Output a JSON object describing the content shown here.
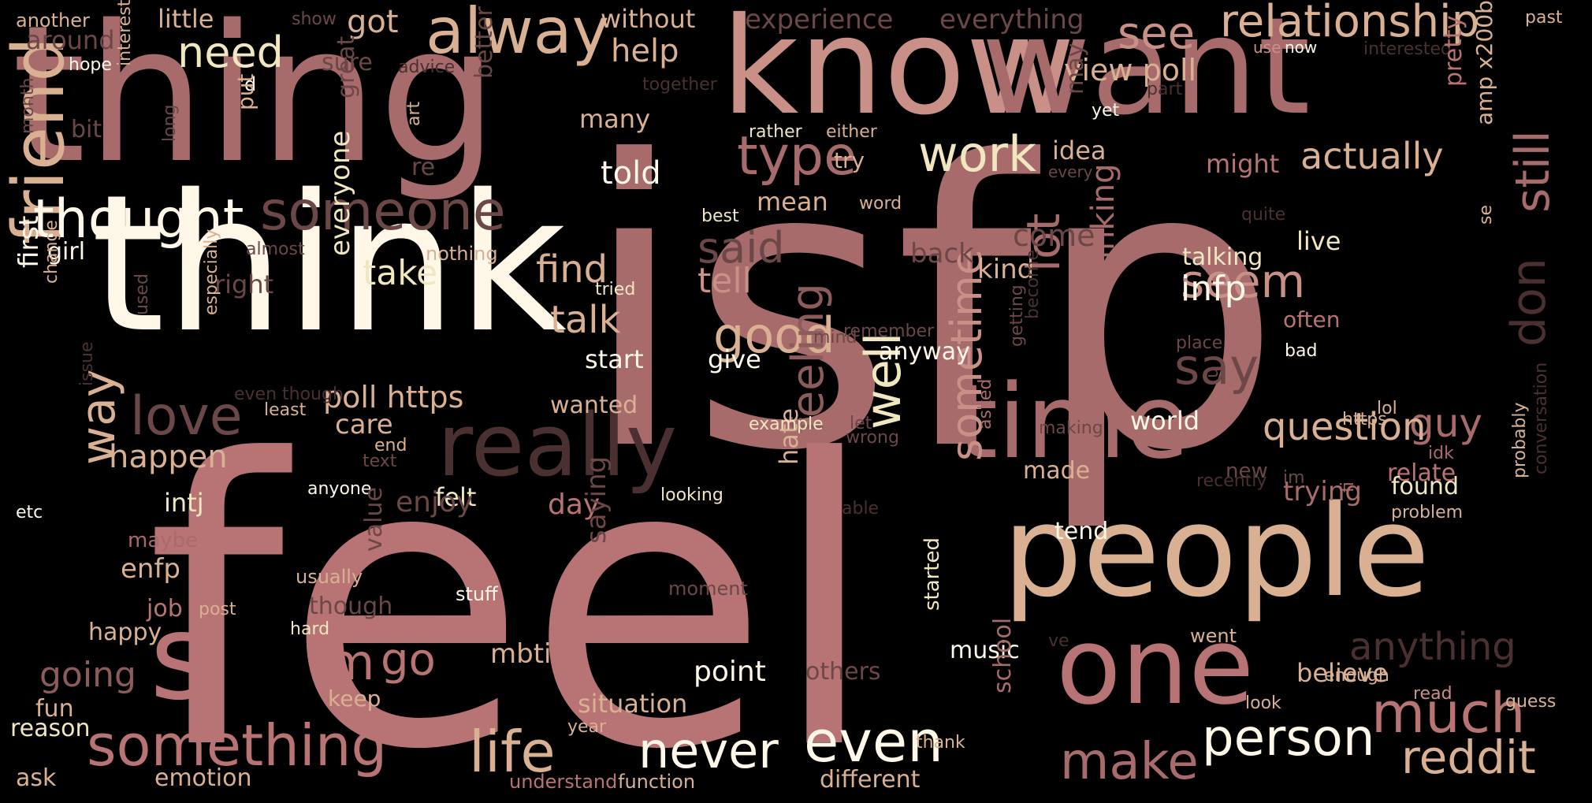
{
  "palette": {
    "background": "#000000",
    "rose": "#A86B6B",
    "rose2": "#B87474",
    "tan": "#D9B192",
    "cream": "#FFF8E8",
    "paleYellow": "#F0E6C0",
    "brown": "#6B4747",
    "darkBrown": "#4A3030",
    "mauve": "#C99088",
    "dust": "#8C5C5C"
  },
  "words": [
    {
      "t": "isfp"
    },
    {
      "t": "feel"
    },
    {
      "t": "think"
    },
    {
      "t": "thing"
    },
    {
      "t": "know"
    },
    {
      "t": "want"
    },
    {
      "t": "people"
    },
    {
      "t": "time"
    },
    {
      "t": "really"
    },
    {
      "t": "one"
    },
    {
      "t": "friend"
    },
    {
      "t": "s"
    },
    {
      "t": "something"
    },
    {
      "t": "life"
    },
    {
      "t": "even"
    },
    {
      "t": "never"
    },
    {
      "t": "make"
    },
    {
      "t": "person"
    },
    {
      "t": "much"
    },
    {
      "t": "reddit"
    },
    {
      "t": "alway"
    },
    {
      "t": "someone"
    },
    {
      "t": "thought"
    },
    {
      "t": "love"
    },
    {
      "t": "relationship"
    },
    {
      "t": "see"
    },
    {
      "t": "type"
    },
    {
      "t": "work"
    },
    {
      "t": "need"
    },
    {
      "t": "good"
    },
    {
      "t": "say"
    },
    {
      "t": "seem"
    },
    {
      "t": "lot"
    },
    {
      "t": "still"
    },
    {
      "t": "don"
    },
    {
      "t": "feeling"
    },
    {
      "t": "well"
    },
    {
      "t": "sometime"
    },
    {
      "t": "anything"
    },
    {
      "t": "go"
    },
    {
      "t": "m"
    },
    {
      "t": "way"
    },
    {
      "t": "going"
    },
    {
      "t": "said"
    },
    {
      "t": "tell"
    },
    {
      "t": "find"
    },
    {
      "t": "talk"
    },
    {
      "t": "take"
    },
    {
      "t": "actually"
    },
    {
      "t": "infp"
    },
    {
      "t": "guy"
    },
    {
      "t": "view poll"
    },
    {
      "t": "poll https"
    },
    {
      "t": "help"
    },
    {
      "t": "got"
    },
    {
      "t": "experience"
    },
    {
      "t": "everything"
    },
    {
      "t": "without"
    },
    {
      "t": "little"
    },
    {
      "t": "another"
    },
    {
      "t": "around"
    },
    {
      "t": "show"
    },
    {
      "t": "sure"
    },
    {
      "t": "advice"
    },
    {
      "t": "hope"
    },
    {
      "t": "d"
    },
    {
      "t": "together"
    },
    {
      "t": "past"
    },
    {
      "t": "use"
    },
    {
      "t": "now"
    },
    {
      "t": "interested"
    },
    {
      "t": "part"
    },
    {
      "t": "yet"
    },
    {
      "t": "may"
    },
    {
      "t": "idea"
    },
    {
      "t": "every"
    },
    {
      "t": "try"
    },
    {
      "t": "rather"
    },
    {
      "t": "either"
    },
    {
      "t": "many"
    },
    {
      "t": "better"
    },
    {
      "t": "told"
    },
    {
      "t": "mean"
    },
    {
      "t": "best"
    },
    {
      "t": "word"
    },
    {
      "t": "quite"
    },
    {
      "t": "might"
    },
    {
      "t": "pretty"
    },
    {
      "t": "amp x200b"
    },
    {
      "t": "se"
    },
    {
      "t": "bit"
    },
    {
      "t": "interest"
    },
    {
      "t": "month"
    },
    {
      "t": "long"
    },
    {
      "t": "put"
    },
    {
      "t": "great"
    },
    {
      "t": "art"
    },
    {
      "t": "re"
    },
    {
      "t": "girl"
    },
    {
      "t": "almost"
    },
    {
      "t": "nothing"
    },
    {
      "t": "first"
    },
    {
      "t": "change"
    },
    {
      "t": "right"
    },
    {
      "t": "everyone"
    },
    {
      "t": "tried"
    },
    {
      "t": "come"
    },
    {
      "t": "back"
    },
    {
      "t": "kind"
    },
    {
      "t": "talking"
    },
    {
      "t": "live"
    },
    {
      "t": "often"
    },
    {
      "t": "bad"
    },
    {
      "t": "place"
    },
    {
      "t": "remember"
    },
    {
      "t": "mind"
    },
    {
      "t": "anyway"
    },
    {
      "t": "give"
    },
    {
      "t": "start"
    },
    {
      "t": "used"
    },
    {
      "t": "especially"
    },
    {
      "t": "issue"
    },
    {
      "t": "even though"
    },
    {
      "t": "least"
    },
    {
      "t": "care"
    },
    {
      "t": "wanted"
    },
    {
      "t": "end"
    },
    {
      "t": "text"
    },
    {
      "t": "happen"
    },
    {
      "t": "anyone"
    },
    {
      "t": "intj"
    },
    {
      "t": "felt"
    },
    {
      "t": "enjoy"
    },
    {
      "t": "day"
    },
    {
      "t": "maybe"
    },
    {
      "t": "etc"
    },
    {
      "t": "enfp"
    },
    {
      "t": "usually"
    },
    {
      "t": "value"
    },
    {
      "t": "though"
    },
    {
      "t": "job"
    },
    {
      "t": "post"
    },
    {
      "t": "hard"
    },
    {
      "t": "happy"
    },
    {
      "t": "fun"
    },
    {
      "t": "reason"
    },
    {
      "t": "keep"
    },
    {
      "t": "ask"
    },
    {
      "t": "emotion"
    },
    {
      "t": "understand"
    },
    {
      "t": "function"
    },
    {
      "t": "situation"
    },
    {
      "t": "year"
    },
    {
      "t": "mbti"
    },
    {
      "t": "point"
    },
    {
      "t": "stuff"
    },
    {
      "t": "moment"
    },
    {
      "t": "saying"
    },
    {
      "t": "others"
    },
    {
      "t": "hate"
    },
    {
      "t": "example"
    },
    {
      "t": "let"
    },
    {
      "t": "looking"
    },
    {
      "t": "wrong"
    },
    {
      "t": "able"
    },
    {
      "t": "getting"
    },
    {
      "t": "become"
    },
    {
      "t": "thinking"
    },
    {
      "t": "making"
    },
    {
      "t": "world"
    },
    {
      "t": "u"
    },
    {
      "t": "made"
    },
    {
      "t": "new"
    },
    {
      "t": "https"
    },
    {
      "t": "lol"
    },
    {
      "t": "question"
    },
    {
      "t": "relate"
    },
    {
      "t": "idk"
    },
    {
      "t": "im"
    },
    {
      "t": "recently"
    },
    {
      "t": "trying"
    },
    {
      "t": "problem"
    },
    {
      "t": "probably"
    },
    {
      "t": "found"
    },
    {
      "t": "fi"
    },
    {
      "t": "conversation"
    },
    {
      "t": "tend"
    },
    {
      "t": "asked"
    },
    {
      "t": "started"
    },
    {
      "t": "music"
    },
    {
      "t": "ve"
    },
    {
      "t": "went"
    },
    {
      "t": "believe"
    },
    {
      "t": "enough"
    },
    {
      "t": "read"
    },
    {
      "t": "look"
    },
    {
      "t": "guess"
    },
    {
      "t": "school"
    },
    {
      "t": "thank"
    },
    {
      "t": "different"
    }
  ]
}
